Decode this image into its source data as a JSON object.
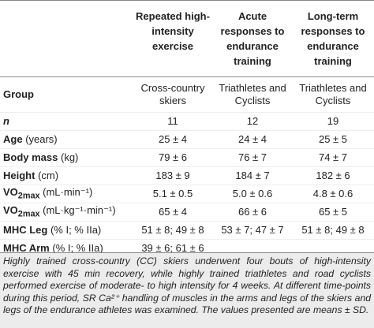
{
  "table": {
    "columns": [
      "Repeated high- intensity exercise",
      "Acute responses to endurance training",
      "Long-term responses to endurance training"
    ],
    "rows": [
      {
        "label": "Group",
        "cells": [
          "Cross-country skiers",
          "Triathletes and Cyclists",
          "Triathletes and Cyclists"
        ]
      },
      {
        "label": "n",
        "italic": true,
        "cells": [
          11,
          12,
          19
        ]
      },
      {
        "label": "Age",
        "unit": "(years)",
        "cells": [
          "25 ± 4",
          "24 ± 4",
          "25 ± 5"
        ]
      },
      {
        "label": "Body mass",
        "unit": "(kg)",
        "cells": [
          "79 ± 6",
          "76 ± 7",
          "74 ± 7"
        ]
      },
      {
        "label": "Height",
        "unit": "(cm)",
        "cells": [
          "183 ± 9",
          "184 ± 7",
          "182 ± 6"
        ]
      },
      {
        "label": "VO",
        "label_sub": "2max",
        "unit": "(mL·min⁻¹)",
        "cells": [
          "5.1 ± 0.5",
          "5.0 ± 0.6",
          "4.8 ± 0.6"
        ]
      },
      {
        "label": "VO",
        "label_sub": "2max",
        "unit": "(mL·kg⁻¹·min⁻¹)",
        "cells": [
          "65 ± 4",
          "66 ± 6",
          "65 ± 5"
        ]
      },
      {
        "label": "MHC Leg",
        "unit": "(% I; % IIa)",
        "cells": [
          "51 ± 8; 49 ± 8",
          "53 ± 7; 47 ± 7",
          "51 ± 8; 49 ± 8"
        ]
      },
      {
        "label": "MHC Arm",
        "unit": "(% I; % IIa)",
        "cells": [
          "39 ± 6; 61 ± 6",
          null,
          null
        ]
      }
    ],
    "footnote": "Highly trained cross-country (CC) skiers underwent four bouts of high-intensity exercise with 45 min recovery, while highly trained triathletes and road cyclists performed exercise of moderate- to high intensity for 4 weeks. At different time-points during this period, SR Ca²⁺ handling of muscles in the arms and legs of the skiers and legs of the endurance athletes was examined. The values presented are means ± SD."
  }
}
